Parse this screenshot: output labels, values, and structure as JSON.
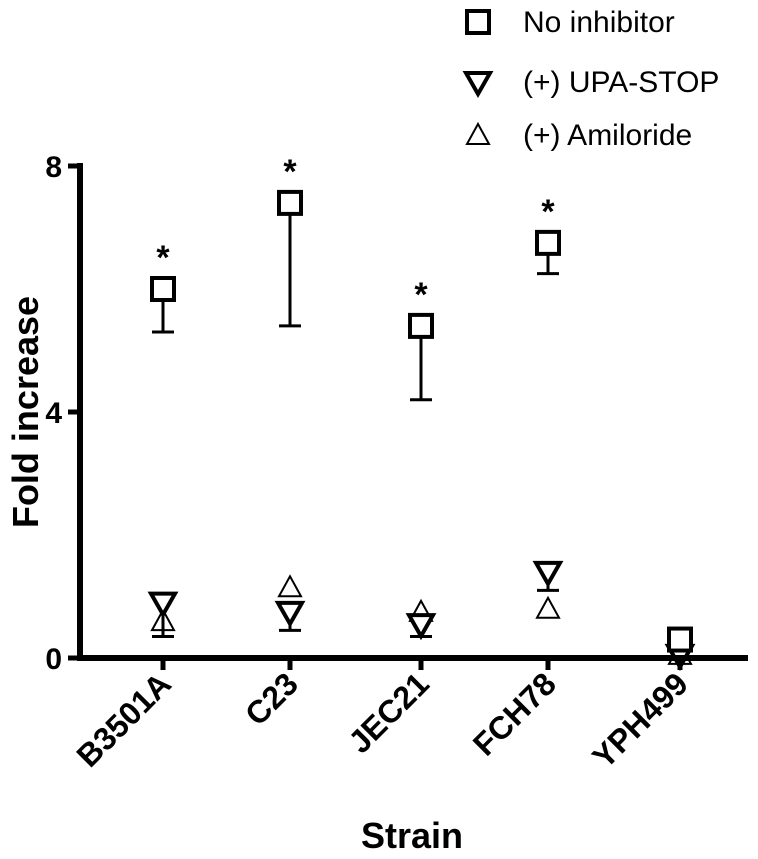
{
  "chart_data": {
    "type": "scatter",
    "xlabel": "Strain",
    "ylabel": "Fold increase",
    "categories": [
      "B3501A",
      "C23",
      "JEC21",
      "FCH78",
      "YPH499"
    ],
    "ylim": [
      0,
      8
    ],
    "yticks": [
      0,
      4,
      8
    ],
    "legend_position": "top-right",
    "series": [
      {
        "name": "No inhibitor",
        "marker": "square",
        "values": [
          6.0,
          7.4,
          5.4,
          6.75,
          0.3
        ],
        "err_low": [
          5.3,
          5.4,
          4.2,
          6.25,
          null
        ],
        "err_high": [
          null,
          null,
          null,
          null,
          null
        ]
      },
      {
        "name": "(+) UPA-STOP",
        "marker": "triangle-down",
        "values": [
          0.9,
          0.75,
          0.55,
          1.4,
          0.05
        ],
        "err_low": [
          0.35,
          0.45,
          0.35,
          1.1,
          null
        ],
        "err_high": [
          null,
          0.9,
          0.7,
          null,
          null
        ]
      },
      {
        "name": "(+) Amiloride",
        "marker": "triangle-up",
        "values": [
          0.6,
          1.15,
          0.75,
          0.8,
          0.05
        ],
        "err_low": [
          null,
          null,
          null,
          null,
          null
        ],
        "err_high": [
          null,
          null,
          null,
          null,
          null
        ]
      }
    ],
    "annotations": [
      {
        "category": "B3501A",
        "text": "*"
      },
      {
        "category": "C23",
        "text": "*"
      },
      {
        "category": "JEC21",
        "text": "*"
      },
      {
        "category": "FCH78",
        "text": "*"
      }
    ]
  }
}
